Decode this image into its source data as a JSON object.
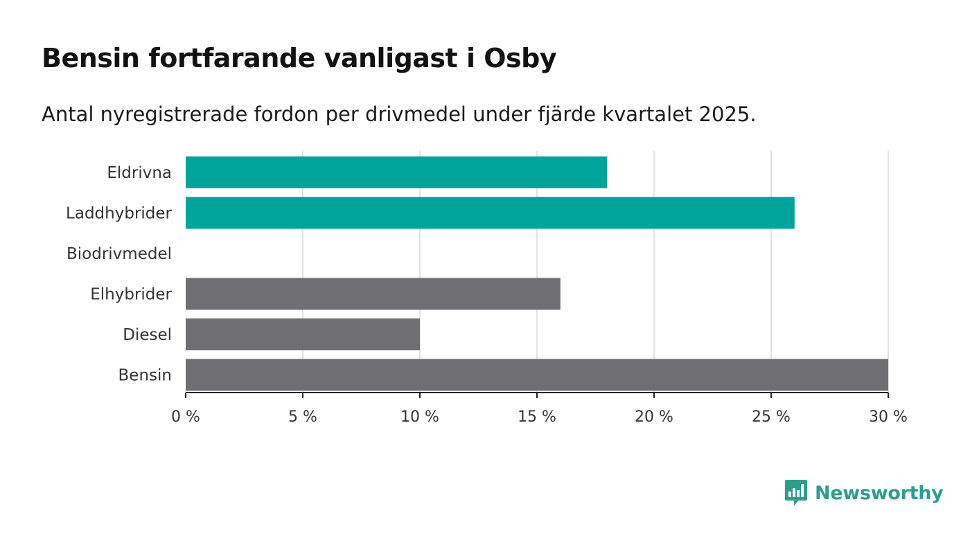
{
  "title": "Bensin fortfarande vanligast i Osby",
  "subtitle": "Antal nyregistrerade fordon per drivmedel under fjärde kvartalet 2025.",
  "brand": {
    "name": "Newsworthy",
    "icon": "newsworthy-logo-icon",
    "color": "#2e9c8f"
  },
  "colors": {
    "highlight": "#00a49a",
    "default": "#6e6e73",
    "grid": "#d9d9d9",
    "axis": "#222222"
  },
  "chart_data": {
    "type": "bar",
    "orientation": "horizontal",
    "title": "Bensin fortfarande vanligast i Osby",
    "subtitle": "Antal nyregistrerade fordon per drivmedel under fjärde kvartalet 2025.",
    "categories": [
      "Eldrivna",
      "Laddhybrider",
      "Biodrivmedel",
      "Elhybrider",
      "Diesel",
      "Bensin"
    ],
    "values": [
      18,
      26,
      0,
      16,
      10,
      30
    ],
    "unit": "%",
    "highlighted": [
      true,
      true,
      true,
      false,
      false,
      false
    ],
    "xlim": [
      0,
      30
    ],
    "xticks": [
      0,
      5,
      10,
      15,
      20,
      25,
      30
    ],
    "xtick_labels": [
      "0 %",
      "5 %",
      "10 %",
      "15 %",
      "20 %",
      "25 %",
      "30 %"
    ],
    "xlabel": "",
    "ylabel": "",
    "grid": true,
    "legend": "none"
  }
}
